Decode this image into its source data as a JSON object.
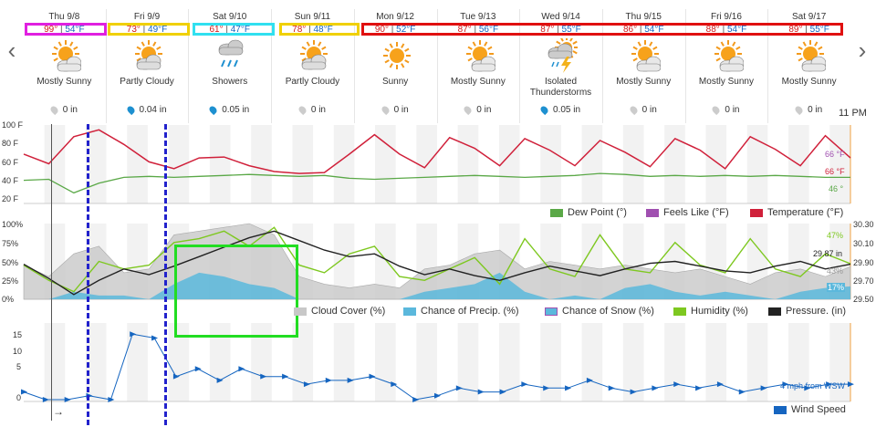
{
  "nav": {
    "prev": "‹",
    "next": "›"
  },
  "days": [
    {
      "date": "Thu 9/8",
      "hi": "99°",
      "lo": "54°F",
      "cond": "Mostly Sunny",
      "icon": "mostly-sunny-icon",
      "precip": "0 in",
      "wet": false
    },
    {
      "date": "Fri 9/9",
      "hi": "73°",
      "lo": "49°F",
      "cond": "Partly Cloudy",
      "icon": "partly-cloudy-icon",
      "precip": "0.04 in",
      "wet": true
    },
    {
      "date": "Sat 9/10",
      "hi": "61°",
      "lo": "47°F",
      "cond": "Showers",
      "icon": "showers-icon",
      "precip": "0.05 in",
      "wet": true
    },
    {
      "date": "Sun 9/11",
      "hi": "78°",
      "lo": "48°F",
      "cond": "Partly Cloudy",
      "icon": "partly-cloudy-icon",
      "precip": "0 in",
      "wet": false
    },
    {
      "date": "Mon 9/12",
      "hi": "90°",
      "lo": "52°F",
      "cond": "Sunny",
      "icon": "sunny-icon",
      "precip": "0 in",
      "wet": false
    },
    {
      "date": "Tue 9/13",
      "hi": "87°",
      "lo": "56°F",
      "cond": "Mostly Sunny",
      "icon": "mostly-sunny-icon",
      "precip": "0 in",
      "wet": false
    },
    {
      "date": "Wed 9/14",
      "hi": "87°",
      "lo": "55°F",
      "cond": "Isolated Thunderstorms",
      "icon": "thunderstorm-icon",
      "precip": "0.05 in",
      "wet": true
    },
    {
      "date": "Thu 9/15",
      "hi": "86°",
      "lo": "54°F",
      "cond": "Mostly Sunny",
      "icon": "mostly-sunny-icon",
      "precip": "0 in",
      "wet": false
    },
    {
      "date": "Fri 9/16",
      "hi": "88°",
      "lo": "54°F",
      "cond": "Mostly Sunny",
      "icon": "mostly-sunny-icon",
      "precip": "0 in",
      "wet": false
    },
    {
      "date": "Sat 9/17",
      "hi": "89°",
      "lo": "55°F",
      "cond": "Mostly Sunny",
      "icon": "mostly-sunny-icon",
      "precip": "0 in",
      "wet": false
    }
  ],
  "time_label": "11 PM",
  "temp_panel": {
    "yticks": [
      "100 F",
      "80 F",
      "60 F",
      "40 F",
      "20 F"
    ],
    "temp_now": "66 °F",
    "feels_now": "66 °F",
    "dew_now": "46 °",
    "legend": {
      "dew": "Dew Point (°)",
      "feels": "Feels Like (°F)",
      "temp": "Temperature (°F)"
    },
    "colors": {
      "temp": "#d0203a",
      "dew": "#5aa847",
      "feels": "#a050b0"
    }
  },
  "humidity_panel": {
    "yticks_left": [
      "100%",
      "75%",
      "50%",
      "25%",
      "0%"
    ],
    "yticks_right": [
      "30.30",
      "30.10",
      "29.90",
      "29.70",
      "29.50"
    ],
    "humidity_now": "47%",
    "pressure_now": "29.87 in",
    "cloud_now": "43%",
    "precip_now": "17%",
    "legend": {
      "cloud": "Cloud Cover (%)",
      "precip": "Chance of Precip. (%)",
      "snow": "Chance of Snow (%)",
      "humidity": "Humidity (%)",
      "pressure": "Pressure. (in)"
    },
    "colors": {
      "cloud": "#c8c8c8",
      "precip": "#5bb8dc",
      "snow": "#a050b0",
      "humidity": "#7ec820",
      "pressure": "#222222"
    }
  },
  "wind_panel": {
    "yticks": [
      "15",
      "10",
      "5",
      "0"
    ],
    "wind_now": "4 mph from WSW",
    "legend": {
      "speed": "Wind Speed"
    },
    "colors": {
      "speed": "#1565c0"
    }
  },
  "highlight_colors": [
    "#e020e0",
    "#f0d000",
    "#30e0f0",
    "#f0d000",
    "#e01010"
  ],
  "chart_data": [
    {
      "type": "line",
      "title": "",
      "ylabel": "",
      "ylim": [
        20,
        100
      ],
      "series": [
        {
          "name": "Temperature (°F)",
          "values": [
            70,
            60,
            88,
            95,
            80,
            62,
            55,
            66,
            67,
            58,
            52,
            50,
            51,
            70,
            90,
            70,
            56,
            87,
            76,
            58,
            86,
            74,
            58,
            84,
            72,
            57,
            86,
            74,
            55,
            88,
            75,
            58,
            89,
            66
          ]
        },
        {
          "name": "Dew Point (°)",
          "values": [
            43,
            44,
            30,
            40,
            46,
            47,
            46,
            47,
            48,
            49,
            48,
            47,
            48,
            45,
            44,
            45,
            46,
            47,
            48,
            47,
            46,
            47,
            48,
            50,
            49,
            47,
            48,
            47,
            48,
            47,
            48,
            47,
            46,
            46
          ]
        },
        {
          "name": "Feels Like (°F)",
          "values": [
            70,
            60,
            88,
            95,
            80,
            62,
            55,
            66,
            67,
            58,
            52,
            50,
            51,
            70,
            90,
            70,
            56,
            87,
            76,
            58,
            86,
            74,
            58,
            84,
            72,
            57,
            86,
            74,
            55,
            88,
            75,
            58,
            89,
            66
          ]
        }
      ]
    },
    {
      "type": "line",
      "title": "",
      "ylabel": "",
      "ylim": [
        0,
        100
      ],
      "series": [
        {
          "name": "Cloud Cover (%)",
          "values": [
            45,
            30,
            60,
            70,
            35,
            40,
            85,
            90,
            95,
            100,
            85,
            30,
            20,
            15,
            20,
            15,
            40,
            45,
            60,
            65,
            40,
            50,
            45,
            40,
            45,
            40,
            35,
            40,
            30,
            20,
            35,
            40,
            30,
            43
          ]
        },
        {
          "name": "Chance of Precip. (%)",
          "values": [
            0,
            0,
            10,
            5,
            5,
            0,
            20,
            35,
            30,
            20,
            15,
            0,
            0,
            0,
            0,
            0,
            10,
            15,
            20,
            35,
            10,
            0,
            5,
            0,
            15,
            20,
            10,
            5,
            10,
            5,
            0,
            10,
            15,
            17
          ]
        },
        {
          "name": "Humidity (%)",
          "values": [
            45,
            25,
            10,
            50,
            40,
            45,
            75,
            80,
            90,
            70,
            95,
            45,
            35,
            60,
            70,
            30,
            25,
            40,
            55,
            20,
            80,
            40,
            30,
            85,
            40,
            35,
            75,
            45,
            35,
            80,
            40,
            30,
            60,
            47
          ]
        },
        {
          "name": "Pressure. (in)",
          "values": [
            29.87,
            29.72,
            29.55,
            29.7,
            29.82,
            29.76,
            29.85,
            29.95,
            30.05,
            30.15,
            30.22,
            30.12,
            30.02,
            29.95,
            29.98,
            29.85,
            29.76,
            29.82,
            29.75,
            29.7,
            29.78,
            29.85,
            29.8,
            29.75,
            29.82,
            29.88,
            29.9,
            29.85,
            29.8,
            29.78,
            29.85,
            29.9,
            29.82,
            29.87
          ]
        }
      ]
    },
    {
      "type": "line",
      "title": "",
      "ylabel": "",
      "ylim": [
        0,
        18
      ],
      "series": [
        {
          "name": "Wind Speed",
          "values": [
            2,
            0,
            0,
            1,
            0,
            17,
            16,
            6,
            8,
            5,
            8,
            6,
            6,
            4,
            5,
            5,
            6,
            4,
            0,
            1,
            3,
            2,
            2,
            4,
            3,
            3,
            5,
            3,
            2,
            3,
            4,
            3,
            4,
            2,
            3,
            4,
            3,
            4,
            4
          ]
        }
      ]
    }
  ]
}
